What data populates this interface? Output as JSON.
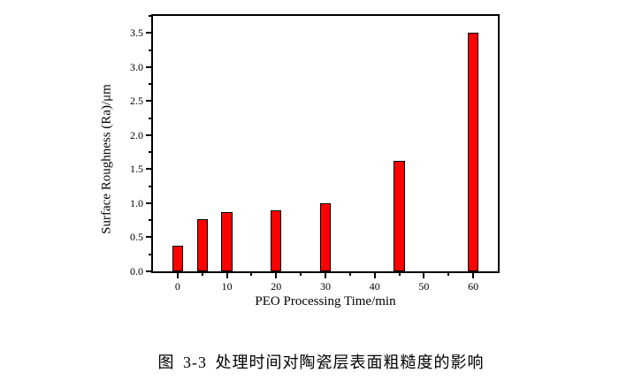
{
  "caption": "图 3-3 处理时间对陶瓷层表面粗糙度的影响",
  "chart_data": {
    "type": "bar",
    "title": "",
    "xlabel": "PEO Processing Time/min",
    "ylabel": "Surface Roughness (Ra)/μm",
    "x": [
      0,
      5,
      10,
      20,
      30,
      45,
      60
    ],
    "values": [
      0.37,
      0.77,
      0.87,
      0.9,
      1.0,
      1.62,
      3.5
    ],
    "xlim": [
      -5,
      65
    ],
    "ylim": [
      0,
      3.75
    ],
    "x_major_ticks": [
      0,
      10,
      20,
      30,
      40,
      50,
      60
    ],
    "x_tick_labels": [
      "0",
      "10",
      "20",
      "30",
      "40",
      "50",
      "60"
    ],
    "x_minor_ticks": [
      5,
      15,
      25,
      35,
      45,
      55
    ],
    "y_major_ticks": [
      0.0,
      0.5,
      1.0,
      1.5,
      2.0,
      2.5,
      3.0,
      3.5
    ],
    "y_tick_labels": [
      "0.0",
      "0.5",
      "1.0",
      "1.5",
      "2.0",
      "2.5",
      "3.0",
      "3.5"
    ],
    "y_minor_ticks": [
      0.25,
      0.75,
      1.25,
      1.75,
      2.25,
      2.75,
      3.25,
      3.75
    ],
    "bar_width_units": 2.2,
    "bar_color": "#ff0000",
    "bar_border_color": "#000000",
    "axis_color": "#000000",
    "background_color": "#ffffff",
    "grid": false,
    "legend": null
  }
}
